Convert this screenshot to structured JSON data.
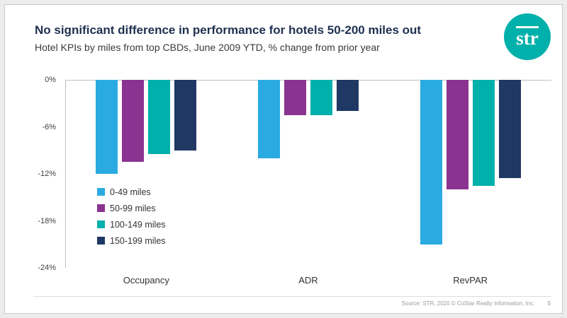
{
  "slide": {
    "title": "No significant difference in performance for hotels 50-200 miles out",
    "subtitle": "Hotel KPIs by miles from top CBDs, June 2009 YTD, % change from prior year",
    "logo_text": "str",
    "footer": {
      "source": "Source: STR, 2020",
      "copyright": "© CoStar Realty Information, Inc.",
      "page": "5"
    }
  },
  "colors": {
    "title_text": "#1F3050",
    "logo_background": "#00B0AA",
    "axis_line": "#BFBFBF"
  },
  "chart_data": {
    "type": "bar",
    "title": "Hotel KPIs by miles from top CBDs, June 2009 YTD, % change from prior year",
    "orientation": "vertical-negative",
    "categories": [
      "Occupancy",
      "ADR",
      "RevPAR"
    ],
    "series": [
      {
        "name": "0-49 miles",
        "color": "#29ABE2",
        "values": [
          -12,
          -10,
          -21
        ]
      },
      {
        "name": "50-99 miles",
        "color": "#8A3391",
        "values": [
          -10.5,
          -4.5,
          -14
        ]
      },
      {
        "name": "100-149 miles",
        "color": "#00B0AA",
        "values": [
          -9.5,
          -4.5,
          -13.5
        ]
      },
      {
        "name": "150-199 miles",
        "color": "#1F3864",
        "values": [
          -9,
          -4,
          -12.5
        ]
      }
    ],
    "ylabel": "% change from prior year",
    "ylim": [
      -24,
      0
    ],
    "yticks": [
      "0%",
      "-6%",
      "-12%",
      "-18%",
      "-24%"
    ],
    "grid": false,
    "legend_position": "inside-left"
  }
}
